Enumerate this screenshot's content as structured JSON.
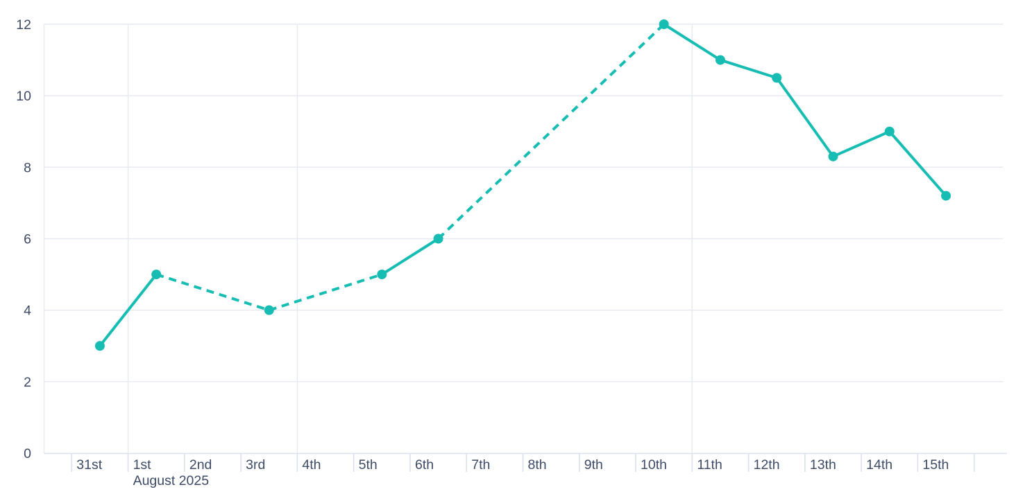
{
  "chart_data": {
    "type": "line",
    "title": "",
    "xlabel": "",
    "ylabel": "",
    "ylim": [
      0,
      12
    ],
    "y_tick_labels": [
      "0",
      "2",
      "4",
      "6",
      "8",
      "10",
      "12"
    ],
    "y_tick_values": [
      0,
      2,
      4,
      6,
      8,
      10,
      12
    ],
    "x_tick_labels": [
      "31st",
      "1st",
      "2nd",
      "3rd",
      "4th",
      "5th",
      "6th",
      "7th",
      "8th",
      "9th",
      "10th",
      "11th",
      "12th",
      "13th",
      "14th",
      "15th"
    ],
    "x_axis_month_label": "August 2025",
    "x_axis_month_label_under": "1st",
    "legend": "none",
    "grid": "on",
    "series": [
      {
        "name": "",
        "color": "#17bdb2",
        "points": [
          {
            "day": "31st",
            "band": 0,
            "value": 3
          },
          {
            "day": "1st",
            "band": 1,
            "value": 5
          },
          {
            "day": "3rd",
            "band": 3,
            "value": 4
          },
          {
            "day": "5th",
            "band": 5,
            "value": 5
          },
          {
            "day": "6th",
            "band": 6,
            "value": 6
          },
          {
            "day": "10th",
            "band": 10,
            "value": 12
          },
          {
            "day": "11th",
            "band": 11,
            "value": 11
          },
          {
            "day": "12th",
            "band": 12,
            "value": 10.5
          },
          {
            "day": "13th",
            "band": 13,
            "value": 8.3
          },
          {
            "day": "14th",
            "band": 14,
            "value": 9
          },
          {
            "day": "15th",
            "band": 15,
            "value": 7.2
          }
        ],
        "connector_styles": [
          "solid",
          "dashed",
          "dashed",
          "solid",
          "dashed",
          "solid",
          "solid",
          "solid",
          "solid",
          "solid"
        ]
      }
    ],
    "layout_hints": {
      "vertical_gridlines_at_tick_indices": [
        1,
        4,
        11
      ],
      "left_edge_gridline": true,
      "tick_count": 17
    },
    "colors": {
      "line": "#17bdb2",
      "marker": "#17bdb2",
      "tick_label": "#3e4b66",
      "gridline": "#e6e9f2",
      "axis_line": "#dbe0ec",
      "background": "#ffffff"
    }
  }
}
